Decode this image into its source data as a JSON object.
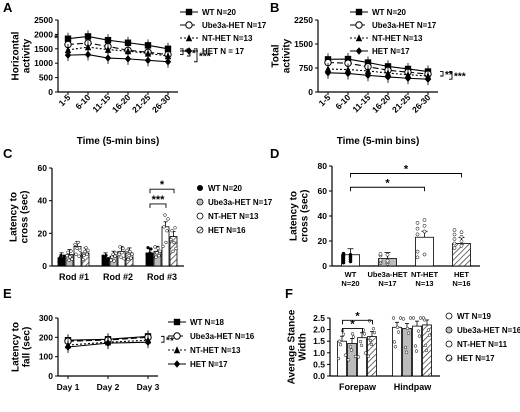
{
  "chart_data": [
    {
      "panel": "A",
      "type": "line",
      "title": "",
      "xlabel": "Time (5-min bins)",
      "ylabel": "Horizontal activity",
      "x": [
        "1-5",
        "6-10",
        "11-15",
        "16-20",
        "21-25",
        "26-30"
      ],
      "yticks": [
        "0",
        "500",
        "1000",
        "1500",
        "2000",
        "2500"
      ],
      "ylim": [
        0,
        2500
      ],
      "series": [
        {
          "name": "WT N=20",
          "values": [
            1850,
            1930,
            1800,
            1710,
            1620,
            1500
          ],
          "color": "#000000",
          "dash": "",
          "marker": "square"
        },
        {
          "name": "Ube3a-HET N=17",
          "values": [
            1650,
            1700,
            1580,
            1450,
            1380,
            1300
          ],
          "color": "#000000",
          "dash": "6,3",
          "marker": "circle-open"
        },
        {
          "name": "NT-HET N=13",
          "values": [
            1460,
            1560,
            1470,
            1420,
            1340,
            1250
          ],
          "color": "#000000",
          "dash": "2,2",
          "marker": "triangle"
        },
        {
          "name": "HET N = 17",
          "values": [
            1280,
            1300,
            1180,
            1150,
            1100,
            1050
          ],
          "color": "#000000",
          "dash": "",
          "marker": "diamond"
        }
      ],
      "annotations": [
        "*",
        "*",
        "***"
      ],
      "legend": "top-right"
    },
    {
      "panel": "B",
      "type": "line",
      "title": "",
      "xlabel": "Time (5-min bins)",
      "ylabel": "Total activity",
      "x": [
        "1-5",
        "6-10",
        "11-15",
        "16-20",
        "21-25",
        "26-30"
      ],
      "yticks": [
        "0",
        "750",
        "1500",
        "2250"
      ],
      "ylim": [
        0,
        2250
      ],
      "series": [
        {
          "name": "WT N=20",
          "values": [
            1020,
            1030,
            920,
            800,
            720,
            640
          ],
          "color": "#000000",
          "dash": "",
          "marker": "square"
        },
        {
          "name": "Ube3a-HET N=17",
          "values": [
            920,
            900,
            790,
            680,
            620,
            560
          ],
          "color": "#000000",
          "dash": "6,3",
          "marker": "circle-open"
        },
        {
          "name": "NT-HET N=13",
          "values": [
            720,
            700,
            660,
            590,
            540,
            500
          ],
          "color": "#000000",
          "dash": "2,2",
          "marker": "triangle"
        },
        {
          "name": "HET N=17",
          "values": [
            600,
            580,
            520,
            470,
            430,
            400
          ],
          "color": "#000000",
          "dash": "",
          "marker": "diamond"
        }
      ],
      "annotations": [
        "**",
        "***"
      ],
      "legend": "top-right"
    },
    {
      "panel": "C",
      "type": "bar",
      "title": "",
      "xlabel": "",
      "ylabel": "Latency to cross (sec)",
      "categories": [
        "Rod #1",
        "Rod #2",
        "Rod #3"
      ],
      "yticks": [
        "0",
        "20",
        "40",
        "60"
      ],
      "ylim": [
        0,
        60
      ],
      "series": [
        {
          "name": "WT N=20",
          "values": [
            5,
            5,
            8
          ],
          "fill": "#000000"
        },
        {
          "name": "Ube3a-HET N=17",
          "values": [
            7,
            6,
            9
          ],
          "fill": "#bbbbbb"
        },
        {
          "name": "NT-HET N=13",
          "values": [
            12,
            9,
            24
          ],
          "fill": "#ffffff"
        },
        {
          "name": "HET N=16",
          "values": [
            8,
            8,
            18
          ],
          "fill": "hatch"
        }
      ],
      "annotations": [
        "*",
        "***"
      ],
      "legend": "right"
    },
    {
      "panel": "D",
      "type": "bar",
      "title": "",
      "xlabel": "",
      "ylabel": "Latency to cross (sec)",
      "categories": [
        "WT N=20",
        "Ube3a-HET N=17",
        "NT-HET N=13",
        "HET N=16"
      ],
      "category_lines": [
        [
          "WT",
          "N=20"
        ],
        [
          "Ube3a-HET",
          "N=17"
        ],
        [
          "NT-HET",
          "N=13"
        ],
        [
          "HET",
          "N=16"
        ]
      ],
      "yticks": [
        "0",
        "20",
        "40",
        "60",
        "80"
      ],
      "ylim": [
        0,
        80
      ],
      "values": [
        9,
        6,
        23,
        18
      ],
      "annotations": [
        "*",
        "*"
      ]
    },
    {
      "panel": "E",
      "type": "line",
      "title": "",
      "xlabel": "",
      "ylabel": "Latency to fall (sec)",
      "x": [
        "Day 1",
        "Day 2",
        "Day 3"
      ],
      "yticks": [
        "0",
        "100",
        "200",
        "300"
      ],
      "ylim": [
        0,
        300
      ],
      "series": [
        {
          "name": "WT N=18",
          "values": [
            185,
            190,
            205
          ],
          "color": "#000000",
          "dash": "",
          "marker": "square"
        },
        {
          "name": "Ube3a-HET N=16",
          "values": [
            180,
            186,
            200
          ],
          "color": "#000000",
          "dash": "6,3",
          "marker": "circle-open"
        },
        {
          "name": "NT-HET N=13",
          "values": [
            160,
            175,
            185
          ],
          "color": "#000000",
          "dash": "2,2",
          "marker": "triangle"
        },
        {
          "name": "HET N=17",
          "values": [
            150,
            170,
            175
          ],
          "color": "#000000",
          "dash": "",
          "marker": "diamond"
        }
      ],
      "annotations": [
        "*",
        "*"
      ],
      "legend": "right"
    },
    {
      "panel": "F",
      "type": "bar",
      "title": "",
      "xlabel": "",
      "ylabel": "Average Stance Width",
      "categories": [
        "Forepaw",
        "Hindpaw"
      ],
      "yticks": [
        "0.0",
        "0.5",
        "1.0",
        "1.5",
        "2.0",
        "2.5"
      ],
      "ylim": [
        0,
        2.5
      ],
      "series": [
        {
          "name": "WT N=19",
          "values": [
            1.5,
            2.1
          ],
          "fill": "#ffffff"
        },
        {
          "name": "Ube3a-HET N=16",
          "values": [
            1.4,
            2.05
          ],
          "fill": "#bbbbbb"
        },
        {
          "name": "NT-HET N=11",
          "values": [
            1.65,
            2.15
          ],
          "fill": "#ffffff"
        },
        {
          "name": "HET N=17",
          "values": [
            1.7,
            2.2
          ],
          "fill": "hatch"
        }
      ],
      "annotations": [
        "*",
        "*"
      ],
      "legend": "right"
    }
  ]
}
